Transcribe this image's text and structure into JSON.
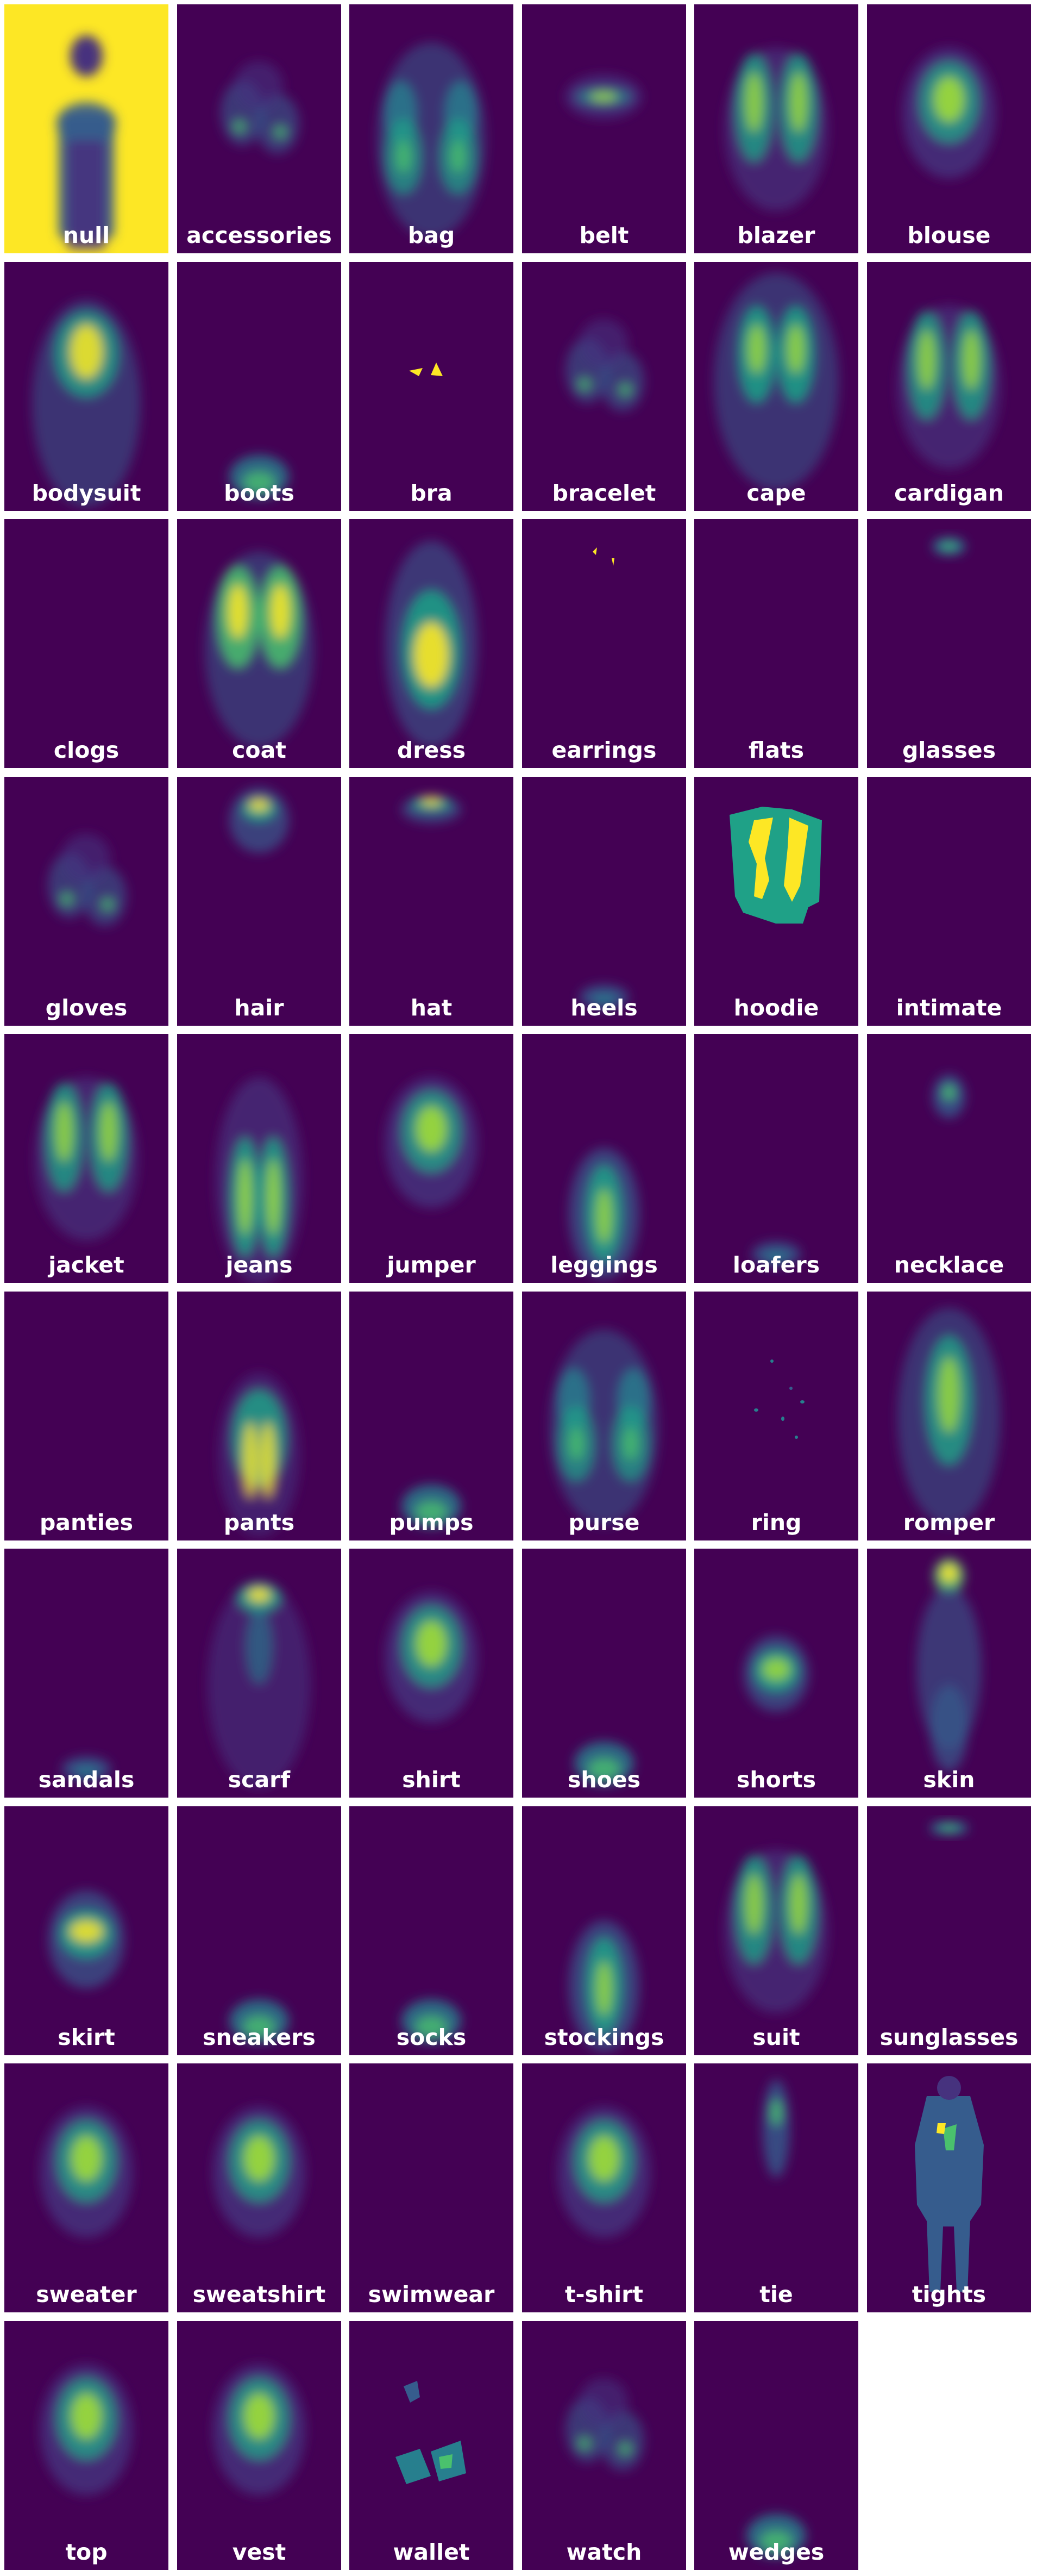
{
  "palette": {
    "background": "#440154",
    "dark": "#46327e",
    "mid": "#365c8d",
    "teal": "#277f8e",
    "green": "#1fa187",
    "lime": "#4ac16d",
    "yellowgreen": "#a0da39",
    "yellow": "#fde725"
  },
  "tiles": [
    {
      "label": "null",
      "shape": "null"
    },
    {
      "label": "accessories",
      "shape": "blobs"
    },
    {
      "label": "bag",
      "shape": "bag"
    },
    {
      "label": "belt",
      "shape": "belt"
    },
    {
      "label": "blazer",
      "shape": "jacket"
    },
    {
      "label": "blouse",
      "shape": "top"
    },
    {
      "label": "bodysuit",
      "shape": "bodysuit"
    },
    {
      "label": "boots",
      "shape": "feet"
    },
    {
      "label": "bra",
      "shape": "bra"
    },
    {
      "label": "bracelet",
      "shape": "blobs"
    },
    {
      "label": "cape",
      "shape": "cape"
    },
    {
      "label": "cardigan",
      "shape": "jacket"
    },
    {
      "label": "clogs",
      "shape": "empty"
    },
    {
      "label": "coat",
      "shape": "coat"
    },
    {
      "label": "dress",
      "shape": "dress"
    },
    {
      "label": "earrings",
      "shape": "earrings"
    },
    {
      "label": "flats",
      "shape": "empty"
    },
    {
      "label": "glasses",
      "shape": "glasses"
    },
    {
      "label": "gloves",
      "shape": "blobs"
    },
    {
      "label": "hair",
      "shape": "hair"
    },
    {
      "label": "hat",
      "shape": "hat"
    },
    {
      "label": "heels",
      "shape": "feetfaint"
    },
    {
      "label": "hoodie",
      "shape": "hoodie"
    },
    {
      "label": "intimate",
      "shape": "empty"
    },
    {
      "label": "jacket",
      "shape": "jacket"
    },
    {
      "label": "jeans",
      "shape": "jeans"
    },
    {
      "label": "jumper",
      "shape": "top"
    },
    {
      "label": "leggings",
      "shape": "legs"
    },
    {
      "label": "loafers",
      "shape": "feetfaint"
    },
    {
      "label": "necklace",
      "shape": "necklace"
    },
    {
      "label": "panties",
      "shape": "empty"
    },
    {
      "label": "pants",
      "shape": "pants"
    },
    {
      "label": "pumps",
      "shape": "feet"
    },
    {
      "label": "purse",
      "shape": "bag"
    },
    {
      "label": "ring",
      "shape": "ring"
    },
    {
      "label": "romper",
      "shape": "romper"
    },
    {
      "label": "sandals",
      "shape": "feetfaint"
    },
    {
      "label": "scarf",
      "shape": "scarf"
    },
    {
      "label": "shirt",
      "shape": "top"
    },
    {
      "label": "shoes",
      "shape": "feet"
    },
    {
      "label": "shorts",
      "shape": "shorts"
    },
    {
      "label": "skin",
      "shape": "skin"
    },
    {
      "label": "skirt",
      "shape": "skirt"
    },
    {
      "label": "sneakers",
      "shape": "feet"
    },
    {
      "label": "socks",
      "shape": "feet"
    },
    {
      "label": "stockings",
      "shape": "legs"
    },
    {
      "label": "suit",
      "shape": "jacket"
    },
    {
      "label": "sunglasses",
      "shape": "sunglasses"
    },
    {
      "label": "sweater",
      "shape": "top"
    },
    {
      "label": "sweatshirt",
      "shape": "top"
    },
    {
      "label": "swimwear",
      "shape": "empty"
    },
    {
      "label": "t-shirt",
      "shape": "top"
    },
    {
      "label": "tie",
      "shape": "tie"
    },
    {
      "label": "tights",
      "shape": "tights"
    },
    {
      "label": "top",
      "shape": "top"
    },
    {
      "label": "vest",
      "shape": "top"
    },
    {
      "label": "wallet",
      "shape": "wallet"
    },
    {
      "label": "watch",
      "shape": "blobs"
    },
    {
      "label": "wedges",
      "shape": "feet"
    }
  ]
}
